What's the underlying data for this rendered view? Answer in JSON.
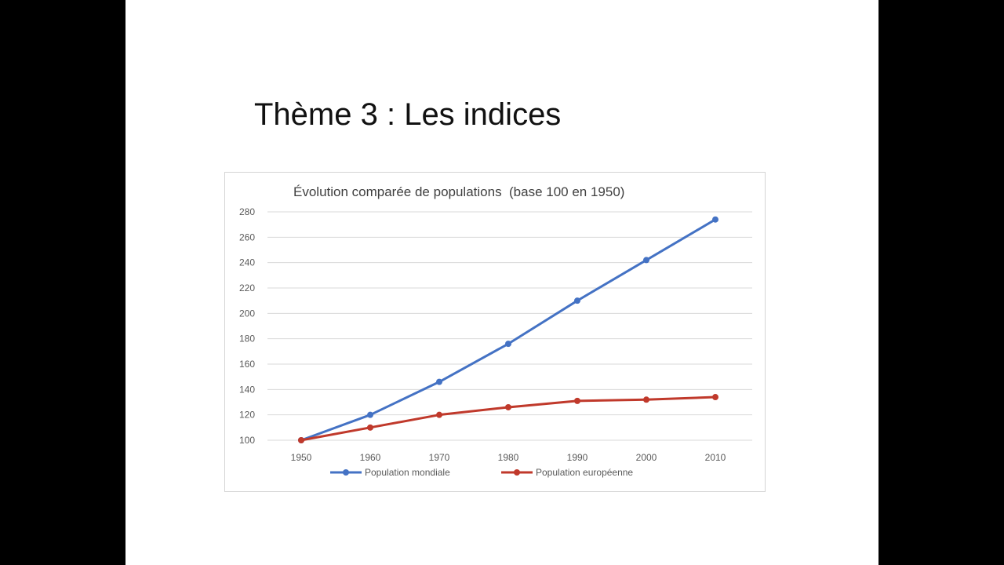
{
  "slide": {
    "title": "Thème 3 : Les indices"
  },
  "colors": {
    "background_bars": "#000000",
    "slide": "#ffffff",
    "series_mondiale": "#4472c4",
    "series_europeenne": "#c0392b",
    "gridline": "#d9d9d9"
  },
  "chart_data": {
    "type": "line",
    "title": "Évolution comparée de populations  (base 100 en 1950)",
    "xlabel": "",
    "ylabel": "",
    "x": [
      "1950",
      "1960",
      "1970",
      "1980",
      "1990",
      "2000",
      "2010"
    ],
    "ylim": [
      100,
      280
    ],
    "yticks": [
      100,
      120,
      140,
      160,
      180,
      200,
      220,
      240,
      260,
      280
    ],
    "grid": true,
    "legend_position": "bottom",
    "series": [
      {
        "name": "Population mondiale",
        "color": "#4472c4",
        "values": [
          100,
          120,
          146,
          176,
          210,
          242,
          274
        ]
      },
      {
        "name": "Population européenne",
        "color": "#c0392b",
        "values": [
          100,
          110,
          120,
          126,
          131,
          132,
          134
        ]
      }
    ]
  }
}
